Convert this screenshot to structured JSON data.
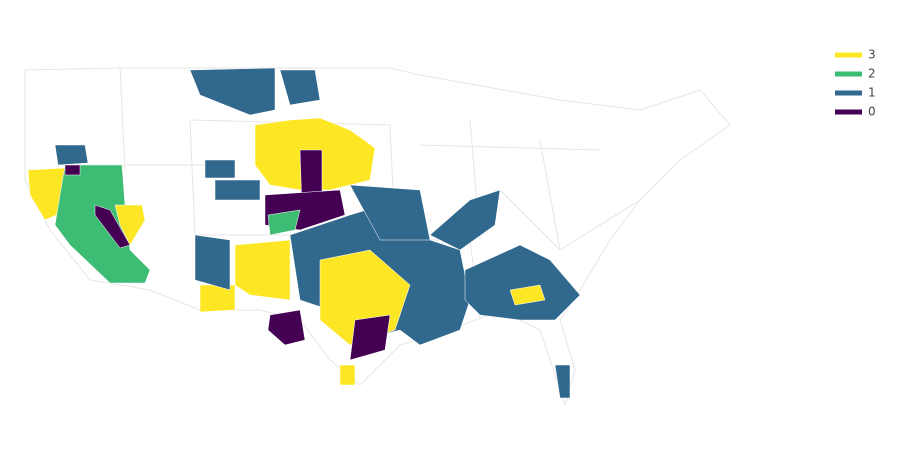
{
  "chart_data": {
    "type": "choropleth",
    "series": [
      {
        "name": "3",
        "color": "#fde725"
      },
      {
        "name": "2",
        "color": "#3dbc74"
      },
      {
        "name": "1",
        "color": "#31688e"
      },
      {
        "name": "0",
        "color": "#440154"
      }
    ],
    "values": [
      1,
      1,
      3,
      0,
      1,
      3,
      2,
      0,
      3,
      0,
      1,
      1,
      0,
      2,
      3,
      3,
      1,
      1,
      3,
      0,
      0,
      1,
      1,
      1,
      1,
      3,
      3
    ]
  }
}
